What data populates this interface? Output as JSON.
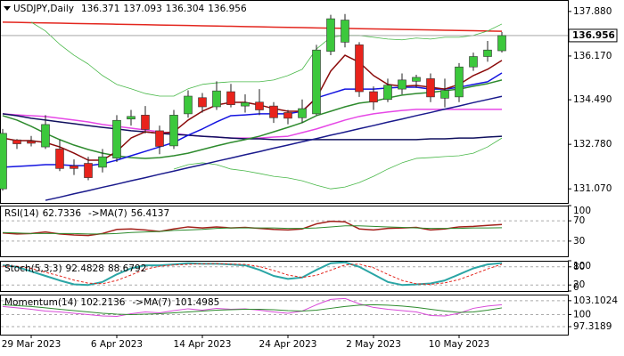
{
  "chart_data": [
    {
      "type": "candlestick",
      "title": "USDJPY,Daily",
      "categories": [
        null,
        null,
        "29 Mar 2023",
        null,
        null,
        null,
        null,
        null,
        "6 Apr 2023",
        null,
        null,
        null,
        null,
        null,
        "14 Apr 2023",
        null,
        null,
        null,
        null,
        null,
        "24 Apr 2023",
        null,
        null,
        null,
        null,
        null,
        "2 May 2023",
        null,
        null,
        null,
        null,
        null,
        "10 May 2023",
        null,
        null,
        null
      ],
      "open": [
        131.07,
        132.95,
        132.9,
        132.68,
        132.6,
        131.95,
        132.05,
        131.9,
        132.25,
        133.75,
        133.9,
        133.3,
        132.72,
        133.95,
        134.57,
        134.22,
        134.8,
        134.25,
        134.4,
        134.25,
        134.0,
        133.8,
        133.95,
        136.35,
        136.7,
        136.6,
        134.8,
        134.5,
        134.9,
        135.2,
        135.3,
        134.55,
        134.6,
        135.75,
        136.15,
        136.371
      ],
      "high": [
        133.37,
        132.98,
        133.1,
        133.9,
        132.95,
        132.2,
        132.3,
        132.6,
        133.9,
        134.1,
        134.25,
        133.5,
        134.1,
        134.85,
        134.75,
        135.2,
        135.1,
        134.7,
        134.9,
        134.4,
        134.1,
        134.5,
        136.6,
        137.75,
        137.78,
        136.7,
        135.0,
        135.3,
        135.5,
        135.45,
        135.5,
        135.3,
        135.9,
        136.3,
        136.75,
        137.093
      ],
      "low": [
        131.0,
        132.6,
        132.7,
        132.6,
        131.75,
        131.6,
        131.4,
        131.7,
        132.1,
        133.5,
        133.2,
        132.4,
        132.6,
        133.8,
        134.0,
        134.1,
        134.2,
        134.0,
        133.9,
        133.6,
        133.55,
        133.6,
        133.9,
        136.2,
        136.5,
        134.6,
        134.1,
        134.4,
        134.7,
        134.95,
        134.4,
        134.2,
        134.4,
        135.6,
        135.95,
        136.304
      ],
      "close": [
        133.2,
        132.8,
        132.82,
        133.54,
        131.85,
        131.85,
        131.5,
        132.3,
        133.7,
        133.85,
        133.35,
        132.7,
        133.9,
        134.63,
        134.22,
        134.83,
        134.3,
        134.38,
        134.1,
        133.8,
        133.78,
        134.15,
        136.4,
        137.6,
        137.55,
        134.8,
        134.4,
        135.05,
        135.25,
        135.35,
        134.6,
        134.85,
        135.75,
        136.15,
        136.4,
        136.956
      ],
      "up_color": "#3cc83c",
      "down_color": "#e8231c",
      "series": [
        {
          "color": "#e3261e",
          "width": 1.5,
          "values": [
            137.47,
            137.46,
            137.45,
            137.44,
            137.43,
            137.42,
            137.41,
            137.4,
            137.39,
            137.38,
            137.37,
            137.36,
            137.35,
            137.34,
            137.33,
            137.32,
            137.31,
            137.3,
            137.29,
            137.28,
            137.27,
            137.26,
            137.25,
            137.24,
            137.23,
            137.22,
            137.21,
            137.2,
            137.19,
            137.18,
            137.17,
            137.16,
            137.15,
            137.14,
            137.13,
            137.12
          ]
        },
        {
          "color": "#49b849",
          "width": 0.8,
          "values": [
            null,
            null,
            137.47,
            137.13,
            136.62,
            136.2,
            135.86,
            135.42,
            135.08,
            134.91,
            134.73,
            134.63,
            134.63,
            134.91,
            135.08,
            135.14,
            135.18,
            135.18,
            135.18,
            135.25,
            135.42,
            135.66,
            136.44,
            136.89,
            136.96,
            136.96,
            136.89,
            136.82,
            136.79,
            136.86,
            136.82,
            136.89,
            136.89,
            136.96,
            137.13,
            137.4
          ]
        },
        {
          "color": "#49b849",
          "width": 0.8,
          "values": [
            null,
            null,
            null,
            null,
            null,
            null,
            null,
            null,
            null,
            null,
            null,
            null,
            131.83,
            132.0,
            132.07,
            132.0,
            131.83,
            131.76,
            131.66,
            131.55,
            131.49,
            131.38,
            131.21,
            131.07,
            131.14,
            131.31,
            131.55,
            131.83,
            132.07,
            132.24,
            132.27,
            132.31,
            132.34,
            132.44,
            132.68,
            133.02
          ]
        },
        {
          "color": "#e648e6",
          "width": 1.5,
          "values": [
            133.95,
            133.91,
            133.88,
            133.85,
            133.78,
            133.71,
            133.64,
            133.54,
            133.47,
            133.4,
            133.33,
            133.26,
            133.2,
            133.13,
            133.09,
            133.06,
            133.02,
            133.02,
            133.02,
            133.06,
            133.09,
            133.23,
            133.37,
            133.54,
            133.71,
            133.85,
            133.95,
            134.02,
            134.08,
            134.12,
            134.12,
            134.12,
            134.12,
            134.12,
            134.12,
            134.12
          ]
        },
        {
          "color": "#10105e",
          "width": 1.5,
          "values": [
            133.95,
            133.88,
            133.78,
            133.71,
            133.64,
            133.57,
            133.5,
            133.43,
            133.37,
            133.3,
            133.26,
            133.2,
            133.16,
            133.13,
            133.09,
            133.06,
            133.02,
            132.99,
            132.99,
            132.96,
            132.96,
            132.96,
            132.96,
            132.96,
            132.96,
            132.96,
            132.96,
            132.96,
            132.96,
            132.96,
            132.99,
            132.99,
            133.02,
            133.02,
            133.06,
            133.09
          ]
        },
        {
          "color": "#1a1a8c",
          "width": 1.5,
          "values": [
            null,
            null,
            null,
            130.63,
            130.75,
            130.88,
            131.0,
            131.13,
            131.25,
            131.38,
            131.5,
            131.63,
            131.75,
            131.88,
            132.0,
            132.13,
            132.25,
            132.38,
            132.5,
            132.63,
            132.75,
            132.88,
            133.0,
            133.13,
            133.25,
            133.38,
            133.5,
            133.63,
            133.75,
            133.88,
            134.0,
            134.13,
            134.25,
            134.38,
            134.5,
            134.62
          ]
        },
        {
          "color": "#2e8b2e",
          "width": 1.5,
          "values": [
            133.88,
            133.71,
            133.47,
            133.2,
            132.96,
            132.75,
            132.58,
            132.44,
            132.34,
            132.27,
            132.24,
            132.27,
            132.34,
            132.44,
            132.58,
            132.72,
            132.85,
            132.96,
            133.09,
            133.26,
            133.43,
            133.61,
            133.88,
            134.05,
            134.22,
            134.36,
            134.43,
            134.56,
            134.67,
            134.73,
            134.77,
            134.84,
            134.9,
            135.01,
            135.11,
            135.25
          ]
        },
        {
          "color": "#1414e0",
          "width": 1.5,
          "values": [
            131.9,
            131.93,
            131.96,
            132.0,
            132.0,
            131.96,
            131.96,
            132.03,
            132.17,
            132.34,
            132.51,
            132.68,
            132.85,
            133.13,
            133.37,
            133.64,
            133.88,
            133.91,
            133.95,
            133.95,
            133.95,
            134.05,
            134.56,
            134.73,
            134.9,
            134.9,
            134.9,
            134.94,
            134.97,
            134.97,
            134.9,
            134.9,
            134.97,
            135.08,
            135.18,
            135.52
          ]
        },
        {
          "color": "#8b0a0a",
          "width": 1.5,
          "values": [
            133.02,
            132.92,
            132.92,
            132.85,
            132.68,
            132.44,
            132.17,
            132.17,
            132.51,
            133.02,
            133.26,
            133.2,
            133.26,
            133.71,
            134.05,
            134.29,
            134.39,
            134.39,
            134.29,
            134.15,
            134.05,
            134.05,
            134.56,
            135.59,
            136.2,
            135.93,
            135.42,
            135.08,
            135.01,
            135.04,
            134.97,
            134.9,
            135.08,
            135.42,
            135.66,
            136.0
          ]
        }
      ],
      "ylim": [
        130.53,
        138.32
      ],
      "yticks": [
        {
          "value": 137.88,
          "label": "137.880"
        },
        {
          "value": 136.17,
          "label": "136.170"
        },
        {
          "value": 134.49,
          "label": "134.490"
        },
        {
          "value": 132.78,
          "label": "132.780"
        },
        {
          "value": 131.07,
          "label": "131.070"
        }
      ]
    },
    {
      "type": "line",
      "series": [
        {
          "name": "RSI(14)",
          "color": "#a3201a",
          "width": 1.5,
          "values": [
            46,
            44,
            45,
            48,
            44,
            42,
            41,
            45,
            53,
            54,
            52,
            49,
            54,
            58,
            56,
            58,
            56,
            57,
            55,
            53,
            52,
            54,
            64,
            69,
            68,
            54,
            52,
            55,
            56,
            57,
            52,
            54,
            58,
            59,
            61,
            62.7336
          ]
        },
        {
          "name": "->MA(7)",
          "color": "#2e8b2e",
          "width": 1,
          "values": [
            47,
            46,
            45,
            45,
            45,
            45,
            44,
            44,
            45,
            47,
            48,
            49,
            51,
            52,
            53,
            55,
            56,
            56,
            56,
            56,
            55,
            55,
            56,
            58,
            60,
            60,
            59,
            58,
            57,
            56,
            55,
            55,
            55,
            56,
            56,
            56.4137
          ]
        }
      ],
      "ylim": [
        0,
        100
      ],
      "yticks": [
        100,
        70,
        30
      ]
    },
    {
      "type": "line",
      "series": [
        {
          "name": "Stoch(5,3,3)",
          "color": "#2aa5a5",
          "width": 2,
          "values": [
            85,
            80,
            65,
            50,
            35,
            22,
            20,
            30,
            55,
            75,
            85,
            85,
            88,
            92,
            90,
            90,
            88,
            85,
            70,
            50,
            40,
            45,
            70,
            92,
            95,
            80,
            55,
            30,
            20,
            22,
            25,
            35,
            55,
            75,
            88,
            92.4828
          ]
        },
        {
          "color": "#e3261e",
          "width": 1,
          "dash": true,
          "values": [
            82,
            82,
            75,
            62,
            50,
            36,
            26,
            24,
            35,
            53,
            72,
            82,
            86,
            88,
            90,
            91,
            89,
            88,
            81,
            68,
            53,
            45,
            52,
            69,
            86,
            89,
            77,
            55,
            35,
            24,
            22,
            27,
            38,
            55,
            73,
            88.6792
          ]
        }
      ],
      "ylim": [
        0,
        100
      ],
      "yticks": [
        100,
        80,
        20,
        0
      ]
    },
    {
      "type": "line",
      "series": [
        {
          "name": "Momentum(14)",
          "color": "#d84ad8",
          "width": 1,
          "values": [
            101.8,
            101.5,
            101.2,
            100.8,
            100.6,
            100.3,
            100.0,
            99.7,
            99.6,
            100.2,
            100.6,
            100.4,
            100.9,
            101.3,
            101.0,
            101.4,
            101.2,
            101.3,
            101.0,
            100.6,
            100.3,
            100.8,
            102.2,
            103.4,
            103.6,
            102.4,
            101.6,
            101.2,
            100.9,
            100.6,
            99.8,
            99.7,
            100.3,
            101.4,
            101.9,
            102.2136
          ]
        },
        {
          "name": "->MA(7)",
          "color": "#2e8b2e",
          "width": 1,
          "values": [
            102.2,
            102.0,
            101.8,
            101.5,
            101.2,
            100.9,
            100.6,
            100.3,
            100.1,
            100.0,
            100.1,
            100.2,
            100.4,
            100.6,
            100.8,
            101.0,
            101.1,
            101.2,
            101.2,
            101.1,
            100.9,
            100.8,
            101.0,
            101.4,
            101.8,
            102.1,
            102.2,
            102.1,
            101.9,
            101.6,
            101.2,
            100.8,
            100.5,
            100.6,
            101.0,
            101.4985
          ]
        }
      ],
      "ylim": [
        95.54,
        104.46
      ],
      "yticks": [
        103.1024,
        100,
        97.3189
      ]
    }
  ]
}
